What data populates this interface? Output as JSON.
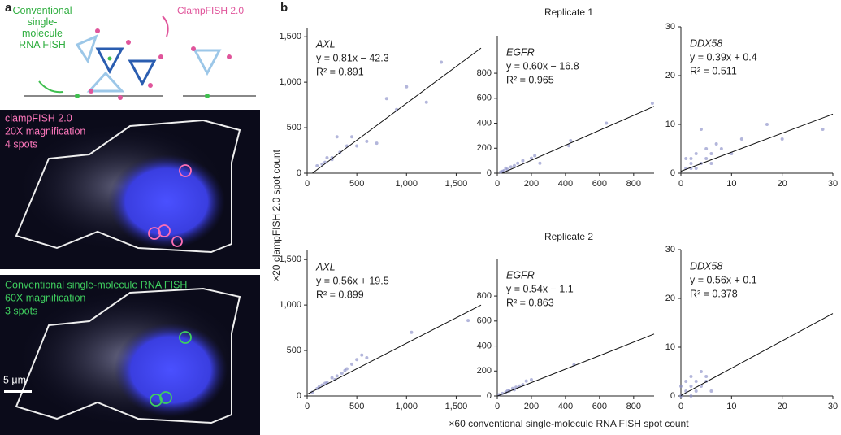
{
  "panel_labels": [
    "a",
    "b"
  ],
  "diagram": {
    "smfish_label": "Conventional\nsingle-\nmolecule\nRNA FISH",
    "clampfish_label": "ClampFISH 2.0"
  },
  "image_top": {
    "lines": [
      "clampFISH 2.0",
      "20X magnification",
      "4 spots"
    ]
  },
  "image_bottom": {
    "lines": [
      "Conventional single-molecule RNA FISH",
      "60X magnification",
      "3 spots"
    ],
    "scale_bar": "5 μm"
  },
  "row_titles": [
    "Replicate 1",
    "Replicate 2"
  ],
  "y_label": "×20 clampFISH 2.0 spot count",
  "x_label": "×60 conventional single-molecule RNA FISH spot count",
  "chart_data": [
    {
      "type": "scatter",
      "gene": "AXL",
      "equation": "y = 0.81x − 42.3",
      "r2": "R² = 0.891",
      "fit": {
        "slope": 0.81,
        "intercept": -42.3
      },
      "color": "#8a8fc8",
      "xlim": [
        0,
        1750
      ],
      "ylim": [
        0,
        1600
      ],
      "xticks": [
        0,
        500,
        {
          "value": 1000,
          "label": "1,000"
        },
        {
          "value": 1500,
          "label": "1,500"
        }
      ],
      "yticks": [
        0,
        500,
        {
          "value": 1000,
          "label": "1,000"
        },
        {
          "value": 1500,
          "label": "1,500"
        }
      ],
      "x": [
        100,
        150,
        200,
        250,
        300,
        330,
        400,
        450,
        500,
        600,
        700,
        800,
        900,
        1000,
        1200,
        1350,
        250,
        180
      ],
      "y": [
        80,
        100,
        170,
        150,
        400,
        230,
        300,
        400,
        300,
        350,
        330,
        820,
        700,
        950,
        780,
        1220,
        170,
        120
      ]
    },
    {
      "type": "scatter",
      "gene": "EGFR",
      "equation": "y = 0.60x − 16.8",
      "r2": "R² = 0.965",
      "fit": {
        "slope": 0.6,
        "intercept": -16.8
      },
      "color": "#8a8fc8",
      "xlim": [
        0,
        920
      ],
      "ylim": [
        0,
        1100
      ],
      "xticks": [
        0,
        200,
        400,
        600,
        800
      ],
      "yticks": [
        0,
        200,
        400,
        600,
        800
      ],
      "x": [
        20,
        40,
        60,
        80,
        100,
        120,
        150,
        200,
        220,
        250,
        420,
        430,
        640,
        910,
        30,
        50
      ],
      "y": [
        10,
        20,
        30,
        50,
        60,
        80,
        100,
        120,
        140,
        80,
        220,
        260,
        400,
        560,
        15,
        40
      ]
    },
    {
      "type": "scatter",
      "gene": "DDX58",
      "equation": "y = 0.39x + 0.4",
      "r2": "R² = 0.511",
      "fit": {
        "slope": 0.39,
        "intercept": 0.4
      },
      "color": "#8a8fc8",
      "xlim": [
        0,
        30
      ],
      "ylim": [
        0,
        30
      ],
      "xticks": [
        0,
        10,
        20,
        30
      ],
      "yticks": [
        0,
        10,
        20,
        30
      ],
      "x": [
        1,
        2,
        3,
        2,
        4,
        5,
        3,
        5,
        6,
        4,
        7,
        8,
        10,
        12,
        17,
        20,
        28,
        6,
        1,
        2
      ],
      "y": [
        1,
        2,
        1,
        3,
        2,
        3,
        4,
        5,
        2,
        9,
        6,
        5,
        4,
        7,
        10,
        7,
        9,
        4,
        3,
        1
      ]
    },
    {
      "type": "scatter",
      "gene": "AXL",
      "equation": "y = 0.56x + 19.5",
      "r2": "R² = 0.899",
      "fit": {
        "slope": 0.56,
        "intercept": 19.5
      },
      "color": "#8a8fc8",
      "xlim": [
        0,
        1750
      ],
      "ylim": [
        0,
        1600
      ],
      "xticks": [
        0,
        500,
        {
          "value": 1000,
          "label": "1,000"
        },
        {
          "value": 1500,
          "label": "1,500"
        }
      ],
      "yticks": [
        0,
        500,
        {
          "value": 1000,
          "label": "1,000"
        },
        {
          "value": 1500,
          "label": "1,500"
        }
      ],
      "x": [
        50,
        100,
        150,
        200,
        250,
        300,
        350,
        400,
        450,
        500,
        550,
        600,
        1050,
        1620,
        120,
        180,
        280,
        380
      ],
      "y": [
        40,
        80,
        120,
        150,
        200,
        220,
        250,
        300,
        350,
        400,
        450,
        420,
        700,
        830,
        100,
        140,
        180,
        280
      ]
    },
    {
      "type": "scatter",
      "gene": "EGFR",
      "equation": "y = 0.54x − 1.1",
      "r2": "R² = 0.863",
      "fit": {
        "slope": 0.54,
        "intercept": -1.1
      },
      "color": "#8a8fc8",
      "xlim": [
        0,
        920
      ],
      "ylim": [
        0,
        1100
      ],
      "xticks": [
        0,
        200,
        400,
        600,
        800
      ],
      "yticks": [
        0,
        200,
        400,
        600,
        800
      ],
      "x": [
        10,
        30,
        50,
        70,
        90,
        110,
        130,
        150,
        170,
        200,
        450,
        60,
        100
      ],
      "y": [
        10,
        20,
        30,
        40,
        60,
        70,
        80,
        90,
        120,
        130,
        250,
        40,
        50
      ]
    },
    {
      "type": "scatter",
      "gene": "DDX58",
      "equation": "y = 0.56x + 0.1",
      "r2": "R² = 0.378",
      "fit": {
        "slope": 0.56,
        "intercept": 0.1
      },
      "color": "#8a8fc8",
      "xlim": [
        0,
        30
      ],
      "ylim": [
        0,
        30
      ],
      "xticks": [
        0,
        10,
        20,
        30
      ],
      "yticks": [
        0,
        10,
        20,
        30
      ],
      "x": [
        0,
        1,
        2,
        3,
        1,
        2,
        4,
        3,
        5,
        4,
        5,
        0,
        6,
        2
      ],
      "y": [
        0,
        1,
        2,
        1,
        3,
        4,
        2,
        3,
        3,
        5,
        4,
        2,
        1,
        0
      ]
    }
  ]
}
